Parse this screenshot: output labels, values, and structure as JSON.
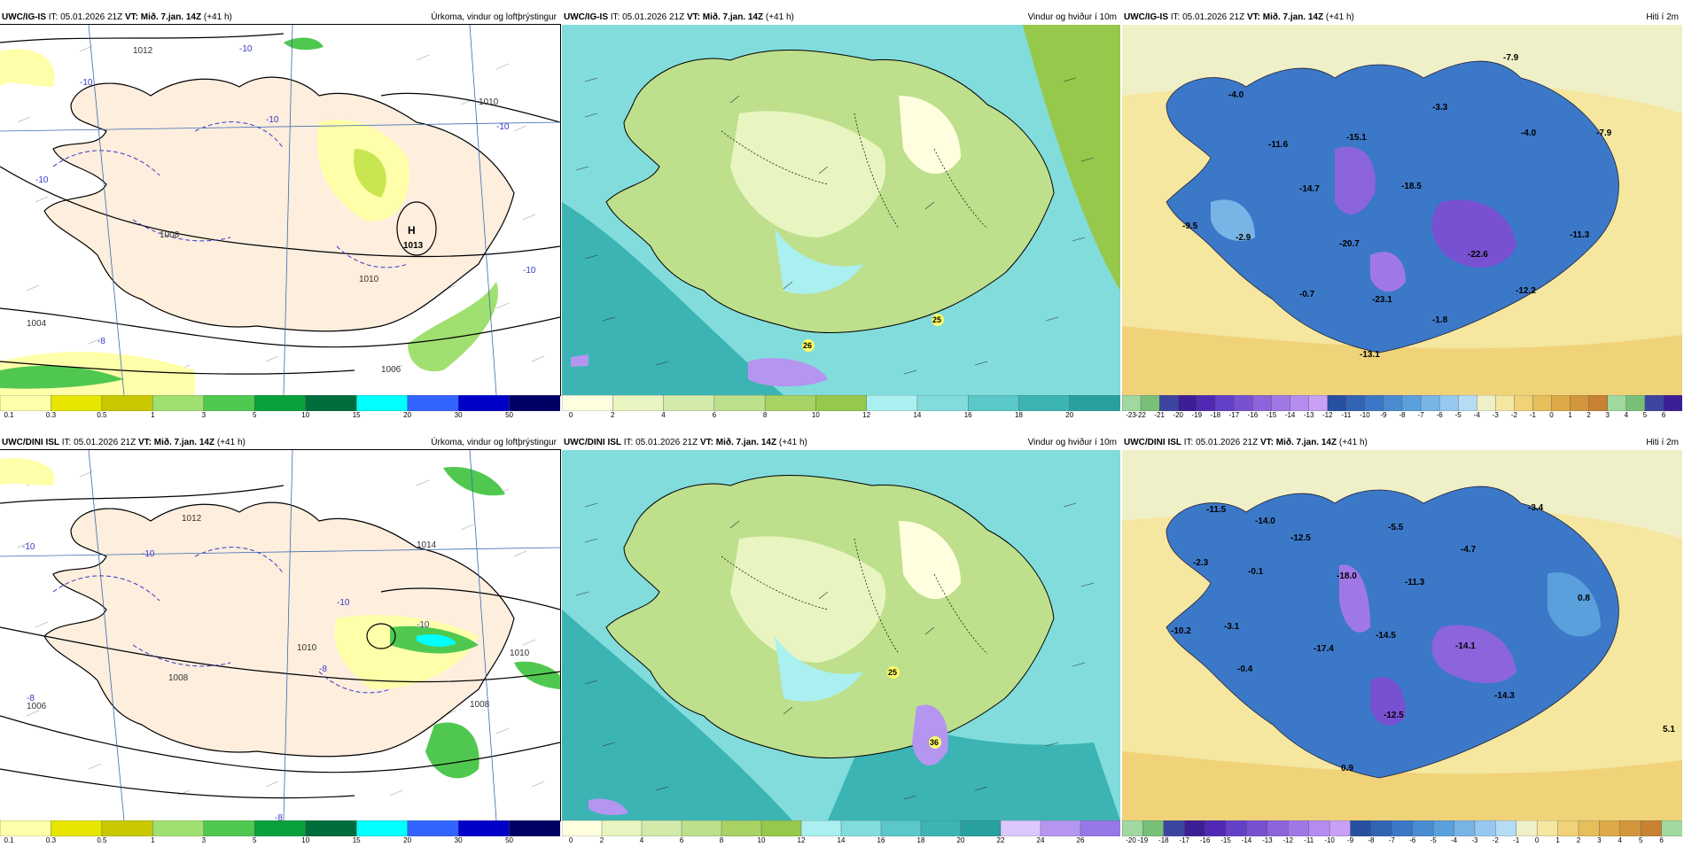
{
  "colors": {
    "precip_scale": [
      "#ffffaa",
      "#e6e600",
      "#c8c800",
      "#a0e070",
      "#50c850",
      "#0aa03c",
      "#006e3c",
      "#00ffff",
      "#3264ff",
      "#0000c8",
      "#000064",
      "#64009a",
      "#b4009a",
      "#ff0096",
      "#ff0000"
    ],
    "wind_scale": [
      "#ffffe0",
      "#e8f5c0",
      "#d2ebaa",
      "#bedf8c",
      "#a8d264",
      "#96c84b",
      "#aaf0f0",
      "#82dcdc",
      "#5ac8c8",
      "#3cb4b4",
      "#28a0a0",
      "#dcc8ff",
      "#b496f0",
      "#9678e6",
      "#7864d2",
      "#ff9696",
      "#e66464"
    ],
    "temp_scale": [
      "#a0d8a0",
      "#78c078",
      "#3c46a0",
      "#3c1e96",
      "#5028b4",
      "#6440c8",
      "#7850d2",
      "#8c64dc",
      "#a078e6",
      "#b48cf0",
      "#c8a0f5",
      "#2850a0",
      "#3264b4",
      "#3c78c8",
      "#4a8cd2",
      "#5aa0dc",
      "#78b4e6",
      "#96c8f0",
      "#b4dcf5",
      "#f0f0c8",
      "#f5e6a0",
      "#f0d278",
      "#e6be5a",
      "#dcaa46",
      "#d2963c",
      "#c88232"
    ]
  },
  "panels": [
    {
      "id": "p1",
      "header": {
        "model": "UWC/IG-IS",
        "it_label": "IT:",
        "it_value": "05.01.2026 21Z",
        "vt_label": "VT:",
        "vt_value": "Mið. 7.jan. 14Z",
        "lead": "(+41 h)",
        "title": "Úrkoma, vindur og loftþrýstingur"
      },
      "ticks": [
        "0.1",
        "0.3",
        "0.5",
        "1",
        "3",
        "5",
        "10",
        "15",
        "20",
        "30",
        "50"
      ],
      "map_labels": [
        "1012",
        "1008",
        "1004",
        "1006",
        "1013",
        "H",
        "-10",
        "-10",
        "-10",
        "-10",
        "-10",
        "-10",
        "-8",
        "1010",
        "1010"
      ]
    },
    {
      "id": "p2",
      "header": {
        "model": "UWC/IG-IS",
        "it_label": "IT:",
        "it_value": "05.01.2026 21Z",
        "vt_label": "VT:",
        "vt_value": "Mið. 7.jan. 14Z",
        "lead": "(+41 h)",
        "title": "Vindur og hviður í 10m"
      },
      "ticks": [
        "0",
        "2",
        "4",
        "6",
        "8",
        "10",
        "12",
        "14",
        "16",
        "18",
        "20"
      ],
      "map_labels": [
        "26",
        "25"
      ]
    },
    {
      "id": "p3",
      "header": {
        "model": "UWC/IG-IS",
        "it_label": "IT:",
        "it_value": "05.01.2026 21Z",
        "vt_label": "VT:",
        "vt_value": "Mið. 7.jan. 14Z",
        "lead": "(+41 h)",
        "title": "Hiti í 2m"
      },
      "ticks": [
        "-23",
        "-22",
        "-21",
        "-20",
        "-19",
        "-18",
        "-17",
        "-16",
        "-15",
        "-14",
        "-13",
        "-12",
        "-11",
        "-10",
        "-9",
        "-8",
        "-7",
        "-6",
        "-5",
        "-4",
        "-3",
        "-2",
        "-1",
        "0",
        "1",
        "2",
        "3",
        "4",
        "5",
        "6"
      ],
      "map_labels": [
        "-7.9",
        "-4.0",
        "-3.3",
        "-4.0",
        "-7.9",
        "-11.6",
        "-15.1",
        "-14.7",
        "-18.5",
        "-9.5",
        "-2.9",
        "-20.7",
        "-22.6",
        "-11.3",
        "-0.7",
        "-23.1",
        "-12.2",
        "-1.8",
        "-13.1"
      ]
    },
    {
      "id": "p4",
      "header": {
        "model": "UWC/DINI ISL",
        "it_label": "IT:",
        "it_value": "05.01.2026 21Z",
        "vt_label": "VT:",
        "vt_value": "Mið. 7.jan. 14Z",
        "lead": "(+41 h)",
        "title": "Úrkoma, vindur og loftþrýstingur"
      },
      "ticks": [
        "0.1",
        "0.3",
        "0.5",
        "1",
        "3",
        "5",
        "10",
        "15",
        "20",
        "30",
        "50"
      ],
      "map_labels": [
        "1012",
        "1008",
        "1006",
        "1010",
        "1008",
        "1010",
        "-10",
        "-10",
        "-10",
        "-10",
        "-8",
        "-8",
        "-8",
        "1014"
      ]
    },
    {
      "id": "p5",
      "header": {
        "model": "UWC/DINI ISL",
        "it_label": "IT:",
        "it_value": "05.01.2026 21Z",
        "vt_label": "VT:",
        "vt_value": "Mið. 7.jan. 14Z",
        "lead": "(+41 h)",
        "title": "Vindur og hviður í 10m"
      },
      "ticks": [
        "0",
        "2",
        "4",
        "6",
        "8",
        "10",
        "12",
        "14",
        "16",
        "18",
        "20",
        "22",
        "24",
        "26"
      ],
      "map_labels": [
        "25",
        "36"
      ]
    },
    {
      "id": "p6",
      "header": {
        "model": "UWC/DINI ISL",
        "it_label": "IT:",
        "it_value": "05.01.2026 21Z",
        "vt_label": "VT:",
        "vt_value": "Mið. 7.jan. 14Z",
        "lead": "(+41 h)",
        "title": "Hiti í 2m"
      },
      "ticks": [
        "-20",
        "-19",
        "-18",
        "-17",
        "-16",
        "-15",
        "-14",
        "-13",
        "-12",
        "-11",
        "-10",
        "-9",
        "-8",
        "-7",
        "-6",
        "-5",
        "-4",
        "-3",
        "-2",
        "-1",
        "0",
        "1",
        "2",
        "3",
        "4",
        "5",
        "6"
      ],
      "map_labels": [
        "-11.5",
        "-14.0",
        "-5.5",
        "-3.4",
        "-12.5",
        "-4.7",
        "-2.3",
        "-0.1",
        "-18.0",
        "-11.3",
        "0.8",
        "-10.2",
        "-3.1",
        "-17.4",
        "-14.5",
        "-14.1",
        "-0.4",
        "-12.5",
        "-14.3",
        "0.9",
        "5.1"
      ]
    }
  ]
}
